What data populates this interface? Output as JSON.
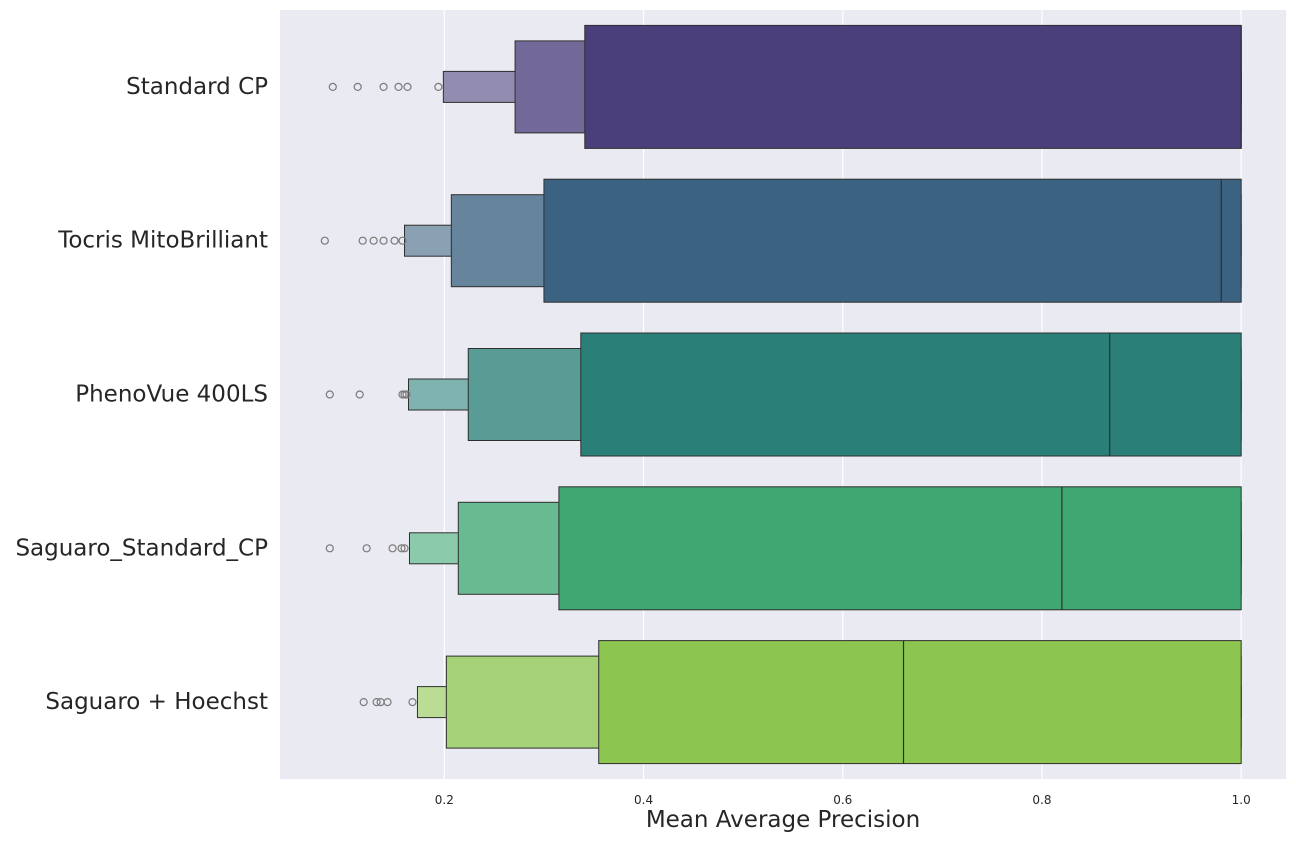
{
  "chart_data": {
    "type": "boxenplot",
    "orientation": "horizontal",
    "title": "",
    "xlabel": "Mean Average Precision",
    "ylabel": "",
    "xlim": [
      0.035,
      1.045
    ],
    "xticks": [
      0.2,
      0.4,
      0.6,
      0.8,
      1.0
    ],
    "xtick_labels": [
      "0.2",
      "0.4",
      "0.6",
      "0.8",
      "1.0"
    ],
    "grid": true,
    "legend": "none",
    "categories": [
      "Standard CP",
      "Tocris MitoBrilliant",
      "PhenoVue 400LS",
      "Saguaro_Standard_CP",
      "Saguaro + Hoechst"
    ],
    "series": [
      {
        "category": "Standard CP",
        "color": "#4a3f7b",
        "median": 1.0,
        "boxes": [
          [
            0.341,
            1.0
          ],
          [
            0.271,
            1.0
          ],
          [
            0.199,
            1.0
          ]
        ],
        "outliers": [
          0.088,
          0.113,
          0.139,
          0.154,
          0.163,
          0.194
        ]
      },
      {
        "category": "Tocris MitoBrilliant",
        "color": "#3b6381",
        "median": 0.98,
        "boxes": [
          [
            0.3,
            1.0
          ],
          [
            0.207,
            1.0
          ],
          [
            0.16,
            1.0
          ]
        ],
        "outliers": [
          0.08,
          0.118,
          0.129,
          0.139,
          0.15,
          0.158
        ]
      },
      {
        "category": "PhenoVue 400LS",
        "color": "#2a8079",
        "median": 0.868,
        "boxes": [
          [
            0.337,
            1.0
          ],
          [
            0.224,
            1.0
          ],
          [
            0.164,
            1.0
          ]
        ],
        "outliers": [
          0.085,
          0.115,
          0.158,
          0.16,
          0.162
        ]
      },
      {
        "category": "Saguaro_Standard_CP",
        "color": "#3ea772",
        "median": 0.82,
        "boxes": [
          [
            0.315,
            1.0
          ],
          [
            0.214,
            1.0
          ],
          [
            0.165,
            1.0
          ]
        ],
        "outliers": [
          0.085,
          0.122,
          0.148,
          0.157,
          0.16
        ]
      },
      {
        "category": "Saguaro + Hoechst",
        "color": "#8cc54f",
        "median": 0.661,
        "boxes": [
          [
            0.355,
            1.0
          ],
          [
            0.202,
            1.0
          ],
          [
            0.173,
            1.0
          ]
        ],
        "outliers": [
          0.119,
          0.132,
          0.136,
          0.143,
          0.168
        ]
      }
    ]
  }
}
